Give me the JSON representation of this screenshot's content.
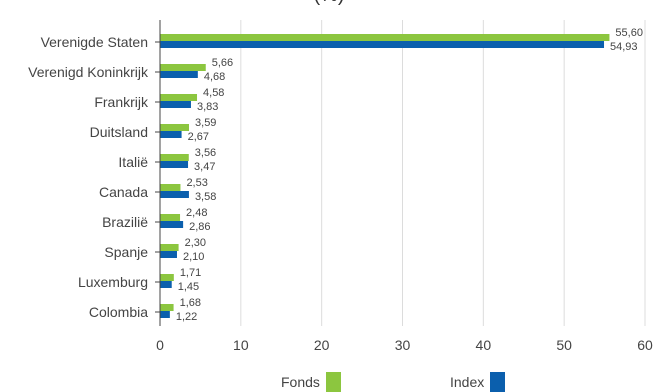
{
  "chart_data": {
    "type": "bar",
    "orientation": "horizontal",
    "title": "(%)",
    "categories": [
      "Verenigde Staten",
      "Verenigd Koninkrijk",
      "Frankrijk",
      "Duitsland",
      "Italië",
      "Canada",
      "Brazilië",
      "Spanje",
      "Luxemburg",
      "Colombia"
    ],
    "series": [
      {
        "name": "Fonds",
        "values": [
          55.6,
          5.66,
          4.58,
          3.59,
          3.56,
          2.53,
          2.48,
          2.3,
          1.71,
          1.68
        ],
        "labels": [
          "55,60",
          "5,66",
          "4,58",
          "3,59",
          "3,56",
          "2,53",
          "2,48",
          "2,30",
          "1,71",
          "1,68"
        ],
        "color": "#8cc63f"
      },
      {
        "name": "Index",
        "values": [
          54.93,
          4.68,
          3.83,
          2.67,
          3.47,
          3.58,
          2.86,
          2.1,
          1.45,
          1.22
        ],
        "labels": [
          "54,93",
          "4,68",
          "3,83",
          "2,67",
          "3,47",
          "3,58",
          "2,86",
          "2,10",
          "1,45",
          "1,22"
        ],
        "color": "#0b5fad"
      }
    ],
    "xlim": [
      0,
      60
    ],
    "xticks": [
      "0",
      "10",
      "20",
      "30",
      "40",
      "50",
      "60"
    ],
    "grid": true,
    "legend_position": "bottom"
  }
}
